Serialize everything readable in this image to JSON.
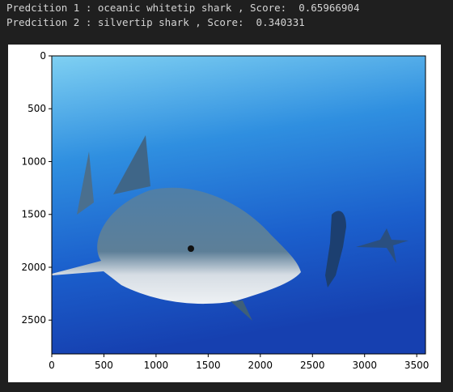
{
  "output_lines": [
    "Predcition 1 : oceanic whitetip shark , Score:  0.65966904",
    "Predcition 2 : silvertip shark , Score:  0.340331"
  ],
  "chart_data": {
    "type": "image",
    "xlim": [
      0,
      3584
    ],
    "ylim": [
      2820,
      0
    ],
    "xticks": [
      0,
      500,
      1000,
      1500,
      2000,
      2500,
      3000,
      3500
    ],
    "yticks": [
      0,
      500,
      1000,
      1500,
      2000,
      2500
    ]
  }
}
